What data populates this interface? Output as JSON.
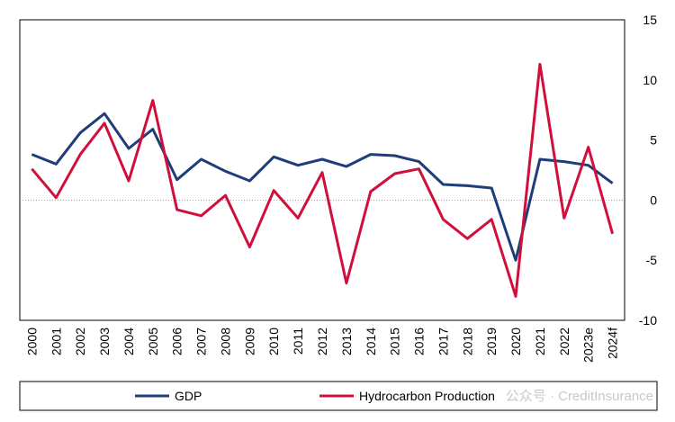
{
  "chart_data": {
    "type": "line",
    "title": "",
    "xlabel": "",
    "ylabel": "",
    "categories": [
      "2000",
      "2001",
      "2002",
      "2003",
      "2004",
      "2005",
      "2006",
      "2007",
      "2008",
      "2009",
      "2010",
      "2011",
      "2012",
      "2013",
      "2014",
      "2015",
      "2016",
      "2017",
      "2018",
      "2019",
      "2020",
      "2021",
      "2022",
      "2023e",
      "2024f"
    ],
    "ylim": [
      -10,
      15
    ],
    "yticks": [
      -10,
      -5,
      0,
      5,
      10,
      15
    ],
    "y_axis_side": "right",
    "grid": false,
    "zero_line": "dotted",
    "legend_position": "bottom",
    "series": [
      {
        "name": "GDP",
        "color": "#1f3d7a",
        "values": [
          3.8,
          3.0,
          5.6,
          7.2,
          4.3,
          5.9,
          1.7,
          3.4,
          2.4,
          1.6,
          3.6,
          2.9,
          3.4,
          2.8,
          3.8,
          3.7,
          3.2,
          1.3,
          1.2,
          1.0,
          -5.0,
          3.4,
          3.2,
          2.9,
          1.4
        ]
      },
      {
        "name": "Hydrocarbon Production",
        "color": "#d0103a",
        "values": [
          2.6,
          0.2,
          3.8,
          6.4,
          1.6,
          8.3,
          -0.8,
          -1.3,
          0.4,
          -3.9,
          0.8,
          -1.5,
          2.3,
          -6.9,
          0.7,
          2.2,
          2.6,
          -1.6,
          -3.2,
          -1.6,
          -8.0,
          11.3,
          -1.5,
          4.4,
          -2.8
        ]
      }
    ]
  },
  "watermark": "公众号 · CreditInsurance"
}
